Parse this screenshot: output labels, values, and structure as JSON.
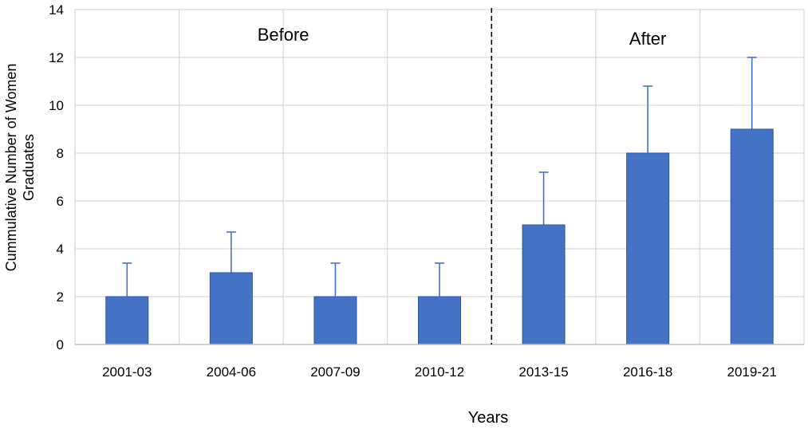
{
  "chart_data": {
    "type": "bar",
    "categories": [
      "2001-03",
      "2004-06",
      "2007-09",
      "2010-12",
      "2013-15",
      "2016-18",
      "2019-21"
    ],
    "values": [
      2,
      3,
      2,
      2,
      5,
      8,
      9
    ],
    "error_plus": [
      1.4,
      1.7,
      1.4,
      1.4,
      2.2,
      2.8,
      3.0
    ],
    "xlabel": "Years",
    "ylabel": "Cummulative Number of Women Graduates",
    "ylim": [
      0,
      14
    ],
    "yticks": [
      0,
      2,
      4,
      6,
      8,
      10,
      12,
      14
    ],
    "grid": true,
    "annotations": [
      "Before",
      "After"
    ],
    "divider_after_category": "2010-12",
    "bar_color": "#4472c4",
    "bar_edge_color": "#2f5597",
    "grid_color": "#d9d9d9"
  }
}
